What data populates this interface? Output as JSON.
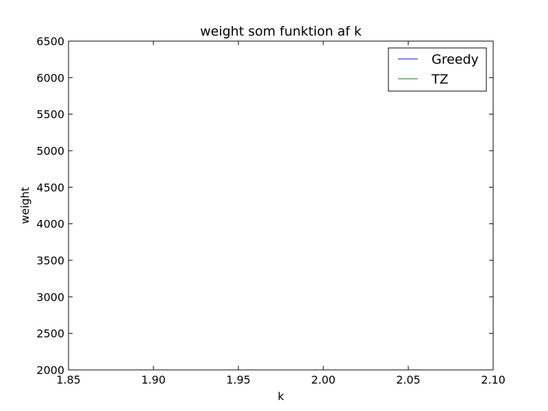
{
  "chart_data": {
    "type": "line",
    "title": "weight som funktion af k",
    "xlabel": "k",
    "ylabel": "weight",
    "xlim": [
      1.85,
      2.1
    ],
    "ylim": [
      2000,
      6500
    ],
    "x_ticks": [
      "1.85",
      "1.90",
      "1.95",
      "2.00",
      "2.05",
      "2.10"
    ],
    "y_ticks": [
      "2000",
      "2500",
      "3000",
      "3500",
      "4000",
      "4500",
      "5000",
      "5500",
      "6000",
      "6500"
    ],
    "grid": false,
    "legend_position": "top-right",
    "series": [
      {
        "name": "Greedy",
        "color": "#0000ff",
        "x": [],
        "y": []
      },
      {
        "name": "TZ",
        "color": "#008000",
        "x": [],
        "y": []
      }
    ]
  }
}
